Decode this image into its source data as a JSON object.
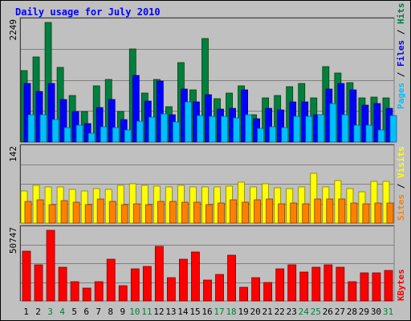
{
  "chart_data": {
    "title": "Daily usage for July 2010",
    "days": [
      "1",
      "2",
      "3",
      "4",
      "5",
      "6",
      "7",
      "8",
      "9",
      "10",
      "11",
      "12",
      "13",
      "14",
      "15",
      "16",
      "17",
      "18",
      "19",
      "20",
      "21",
      "22",
      "23",
      "24",
      "25",
      "26",
      "27",
      "28",
      "29",
      "30",
      "31"
    ],
    "weekend_days": [
      3,
      4,
      10,
      11,
      17,
      18,
      24,
      25,
      31
    ],
    "panels": [
      {
        "type": "bar",
        "max_label": "2249",
        "ymax": 2249,
        "series": [
          {
            "name": "Hits",
            "color": "#008040",
            "values": [
              1350,
              1600,
              2249,
              1400,
              870,
              580,
              1050,
              1170,
              580,
              1750,
              920,
              1170,
              660,
              1500,
              980,
              1950,
              820,
              920,
              1050,
              520,
              830,
              880,
              1040,
              1100,
              830,
              1420,
              1300,
              1120,
              830,
              850,
              830
            ]
          },
          {
            "name": "Files",
            "color": "#0000ff",
            "values": [
              1100,
              950,
              1100,
              800,
              570,
              350,
              650,
              800,
              420,
              1250,
              770,
              1150,
              520,
              1000,
              760,
              890,
              620,
              630,
              980,
              440,
              630,
              600,
              760,
              750,
              520,
              1000,
              1100,
              980,
              690,
              720,
              640
            ]
          },
          {
            "name": "Pages",
            "color": "#00c0ff",
            "values": [
              520,
              520,
              420,
              270,
              320,
              170,
              290,
              270,
              230,
              390,
              470,
              530,
              370,
              760,
              500,
              480,
              480,
              460,
              510,
              250,
              290,
              270,
              480,
              480,
              520,
              720,
              510,
              320,
              310,
              230,
              500
            ]
          }
        ]
      },
      {
        "type": "bar",
        "max_label": "142",
        "ymax": 142,
        "series": [
          {
            "name": "Visits",
            "color": "#ffff00",
            "values": [
              62,
              72,
              70,
              70,
              65,
              62,
              66,
              65,
              73,
              76,
              73,
              71,
              69,
              72,
              69,
              70,
              70,
              71,
              78,
              70,
              76,
              68,
              66,
              70,
              95,
              70,
              82,
              66,
              60,
              80,
              80
            ]
          },
          {
            "name": "Sites",
            "color": "#ff8000",
            "values": [
              42,
              44,
              36,
              43,
              40,
              36,
              46,
              42,
              36,
              37,
              36,
              42,
              41,
              40,
              40,
              35,
              39,
              45,
              40,
              44,
              46,
              37,
              39,
              37,
              47,
              47,
              46,
              38,
              37,
              38,
              38
            ]
          }
        ]
      },
      {
        "type": "bar",
        "max_label": "50747",
        "ymax": 50747,
        "series": [
          {
            "name": "KBytes",
            "color": "#ff0000",
            "values": [
              36000,
              26000,
              50747,
              24000,
              14000,
              9000,
              14000,
              30000,
              11000,
              23000,
              25000,
              39000,
              17000,
              30000,
              35000,
              15000,
              19000,
              33000,
              10000,
              17000,
              13000,
              23000,
              26000,
              21000,
              24000,
              26000,
              24000,
              14000,
              20000,
              20000,
              22000
            ]
          }
        ]
      }
    ]
  }
}
